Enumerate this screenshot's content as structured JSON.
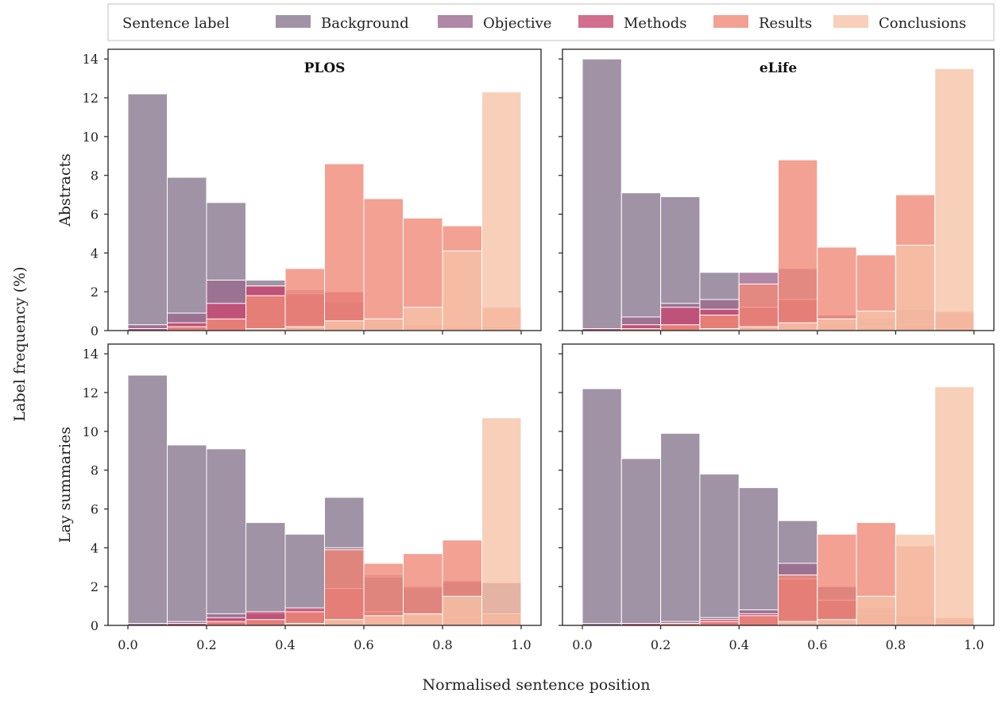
{
  "chart_data": {
    "type": "bar",
    "subtype": "overlaid-histogram-grid",
    "legend": {
      "title": "Sentence label",
      "placement": "top",
      "entries": [
        {
          "name": "Background",
          "color": "#8a7890"
        },
        {
          "name": "Objective",
          "color": "#9b6a8e"
        },
        {
          "name": "Methods",
          "color": "#c74a72"
        },
        {
          "name": "Results",
          "color": "#f08a78"
        },
        {
          "name": "Conclusions",
          "color": "#f6c3a8"
        }
      ]
    },
    "xlabel": "Normalised sentence position",
    "ylabel": "Label frequency (%)",
    "xlim": [
      0,
      1
    ],
    "ylim": [
      0,
      14.5
    ],
    "xticks": [
      "0.0",
      "0.2",
      "0.4",
      "0.6",
      "0.8",
      "1.0"
    ],
    "yticks": [
      "0",
      "2",
      "4",
      "6",
      "8",
      "10",
      "12",
      "14"
    ],
    "bins": [
      0.0,
      0.1,
      0.2,
      0.3,
      0.4,
      0.5,
      0.6,
      0.7,
      0.8,
      0.9,
      1.0
    ],
    "row_labels": [
      "Abstracts",
      "Lay summaries"
    ],
    "col_titles": [
      "PLOS",
      "eLife"
    ],
    "panels": [
      {
        "row": "Abstracts",
        "title": "PLOS",
        "series": [
          {
            "name": "Background",
            "values": [
              12.2,
              7.9,
              6.6,
              2.6,
              2.1,
              1.4,
              0.3,
              0.2,
              0.2,
              0.1
            ]
          },
          {
            "name": "Objective",
            "values": [
              0.3,
              0.9,
              2.6,
              2.3,
              2.0,
              1.5,
              0.5,
              0.3,
              0.3,
              0.2
            ]
          },
          {
            "name": "Methods",
            "values": [
              0.1,
              0.4,
              1.4,
              2.3,
              1.9,
              2.0,
              0.6,
              0.3,
              0.2,
              0.1
            ]
          },
          {
            "name": "Results",
            "values": [
              0.0,
              0.2,
              0.6,
              1.8,
              3.2,
              8.6,
              6.8,
              5.8,
              5.4,
              1.2
            ]
          },
          {
            "name": "Conclusions",
            "values": [
              0.0,
              0.0,
              0.0,
              0.1,
              0.2,
              0.5,
              0.6,
              1.2,
              4.1,
              12.3
            ]
          }
        ]
      },
      {
        "row": "Abstracts",
        "title": "eLife",
        "series": [
          {
            "name": "Background",
            "values": [
              14.0,
              7.1,
              6.9,
              3.0,
              1.2,
              1.6,
              0.3,
              0.2,
              0.2,
              0.2
            ]
          },
          {
            "name": "Objective",
            "values": [
              0.1,
              0.7,
              1.4,
              1.6,
              3.0,
              3.2,
              0.8,
              0.6,
              1.1,
              0.9
            ]
          },
          {
            "name": "Methods",
            "values": [
              0.1,
              0.3,
              1.2,
              1.1,
              1.2,
              1.6,
              0.4,
              0.2,
              0.3,
              0.1
            ]
          },
          {
            "name": "Results",
            "values": [
              0.0,
              0.1,
              0.3,
              0.8,
              2.4,
              8.8,
              4.3,
              3.9,
              7.0,
              1.0
            ]
          },
          {
            "name": "Conclusions",
            "values": [
              0.0,
              0.0,
              0.0,
              0.1,
              0.2,
              0.4,
              0.6,
              1.0,
              4.4,
              13.5
            ]
          }
        ]
      },
      {
        "row": "Lay summaries",
        "title": "PLOS",
        "series": [
          {
            "name": "Background",
            "values": [
              12.9,
              9.3,
              9.1,
              5.3,
              4.7,
              6.6,
              2.6,
              1.9,
              2.2,
              2.2
            ]
          },
          {
            "name": "Objective",
            "values": [
              0.1,
              0.2,
              0.6,
              0.6,
              0.8,
              4.0,
              2.5,
              2.0,
              2.3,
              2.2
            ]
          },
          {
            "name": "Methods",
            "values": [
              0.0,
              0.1,
              0.4,
              0.7,
              0.9,
              1.9,
              0.7,
              0.5,
              0.4,
              0.3
            ]
          },
          {
            "name": "Results",
            "values": [
              0.0,
              0.0,
              0.2,
              0.3,
              0.7,
              3.9,
              3.2,
              3.7,
              4.4,
              0.6
            ]
          },
          {
            "name": "Conclusions",
            "values": [
              0.0,
              0.0,
              0.0,
              0.0,
              0.1,
              0.3,
              0.5,
              0.6,
              1.5,
              10.7
            ]
          }
        ]
      },
      {
        "row": "Lay summaries",
        "title": "eLife",
        "series": [
          {
            "name": "Background",
            "values": [
              12.2,
              8.6,
              9.9,
              7.8,
              7.1,
              5.4,
              2.0,
              0.9,
              0.5,
              0.3
            ]
          },
          {
            "name": "Objective",
            "values": [
              0.1,
              0.1,
              0.2,
              0.4,
              0.8,
              3.2,
              2.0,
              0.9,
              0.5,
              0.2
            ]
          },
          {
            "name": "Methods",
            "values": [
              0.0,
              0.1,
              0.1,
              0.3,
              0.6,
              2.4,
              1.3,
              0.6,
              0.2,
              0.1
            ]
          },
          {
            "name": "Results",
            "values": [
              0.0,
              0.0,
              0.1,
              0.2,
              0.5,
              2.6,
              4.7,
              5.3,
              4.1,
              0.4
            ]
          },
          {
            "name": "Conclusions",
            "values": [
              0.0,
              0.0,
              0.0,
              0.0,
              0.0,
              0.2,
              0.3,
              1.5,
              4.7,
              12.3
            ]
          }
        ]
      }
    ]
  }
}
